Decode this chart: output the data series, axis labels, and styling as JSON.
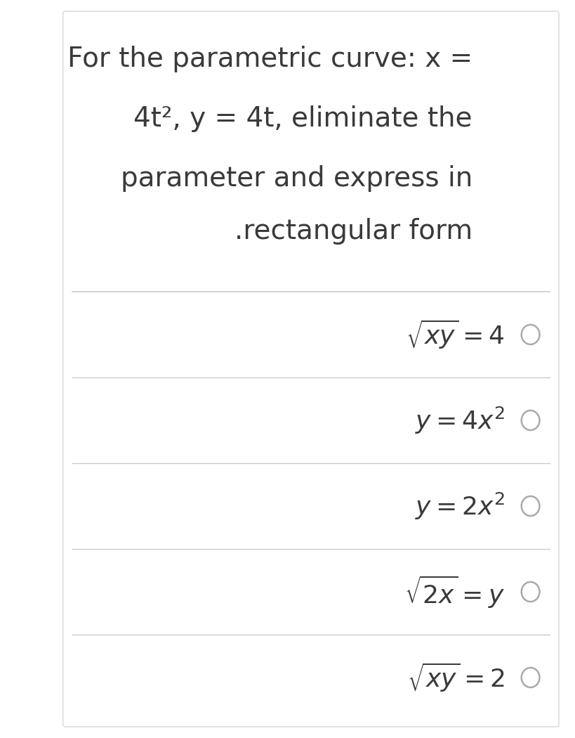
{
  "background_color": "#ffffff",
  "card_color": "#ffffff",
  "question_text_lines": [
    "For the parametric curve: x =",
    "4t², y = 4t, eliminate the",
    "parameter and express in",
    ".rectangular form"
  ],
  "option_math_latex": [
    "$\\sqrt{xy} = 4$",
    "$y = 4x^2$",
    "$y = 2x^2$",
    "$\\sqrt{2x} = y$",
    "$\\sqrt{xy} = 2$"
  ],
  "divider_color": "#cccccc",
  "text_color": "#3a3a3a",
  "circle_color": "#aaaaaa",
  "question_fontsize": 28,
  "option_fontsize": 26,
  "border_color": "#dddddd"
}
